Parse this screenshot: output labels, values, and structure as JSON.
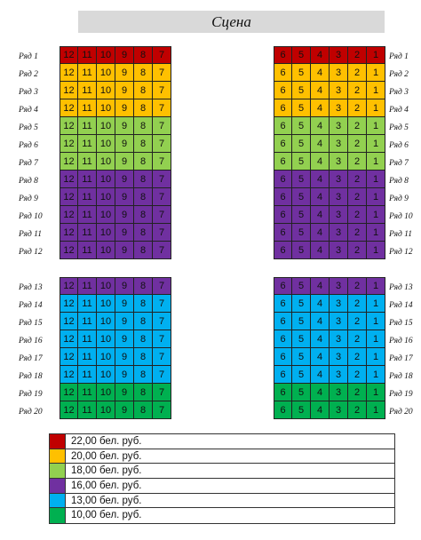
{
  "stage_title": "Сцена",
  "colors": {
    "p22": "#c00000",
    "p20": "#ffc000",
    "p18": "#92d050",
    "p16": "#7030a0",
    "p13": "#00b0f0",
    "p10": "#00b050"
  },
  "left_seats": [
    "12",
    "11",
    "10",
    "9",
    "8",
    "7"
  ],
  "right_seats": [
    "6",
    "5",
    "4",
    "3",
    "2",
    "1"
  ],
  "sections": [
    {
      "rows": [
        {
          "label": "Ряд 1",
          "price": "p22"
        },
        {
          "label": "Ряд 2",
          "price": "p20"
        },
        {
          "label": "Ряд 3",
          "price": "p20"
        },
        {
          "label": "Ряд 4",
          "price": "p20"
        },
        {
          "label": "Ряд 5",
          "price": "p18"
        },
        {
          "label": "Ряд 6",
          "price": "p18"
        },
        {
          "label": "Ряд 7",
          "price": "p18"
        },
        {
          "label": "Ряд 8",
          "price": "p16"
        },
        {
          "label": "Ряд 9",
          "price": "p16"
        },
        {
          "label": "Ряд 10",
          "price": "p16"
        },
        {
          "label": "Ряд 11",
          "price": "p16"
        },
        {
          "label": "Ряд 12",
          "price": "p16"
        }
      ]
    },
    {
      "rows": [
        {
          "label": "Ряд 13",
          "price": "p16"
        },
        {
          "label": "Ряд 14",
          "price": "p13"
        },
        {
          "label": "Ряд 15",
          "price": "p13"
        },
        {
          "label": "Ряд 16",
          "price": "p13"
        },
        {
          "label": "Ряд 17",
          "price": "p13"
        },
        {
          "label": "Ряд 18",
          "price": "p13"
        },
        {
          "label": "Ряд 19",
          "price": "p10"
        },
        {
          "label": "Ряд 20",
          "price": "p10"
        }
      ]
    }
  ],
  "legend": [
    {
      "price": "p22",
      "text": "22,00 бел. руб."
    },
    {
      "price": "p20",
      "text": "20,00 бел. руб."
    },
    {
      "price": "p18",
      "text": "18,00 бел. руб."
    },
    {
      "price": "p16",
      "text": "16,00 бел. руб."
    },
    {
      "price": "p13",
      "text": "13,00 бел. руб."
    },
    {
      "price": "p10",
      "text": "10,00 бел. руб."
    }
  ]
}
